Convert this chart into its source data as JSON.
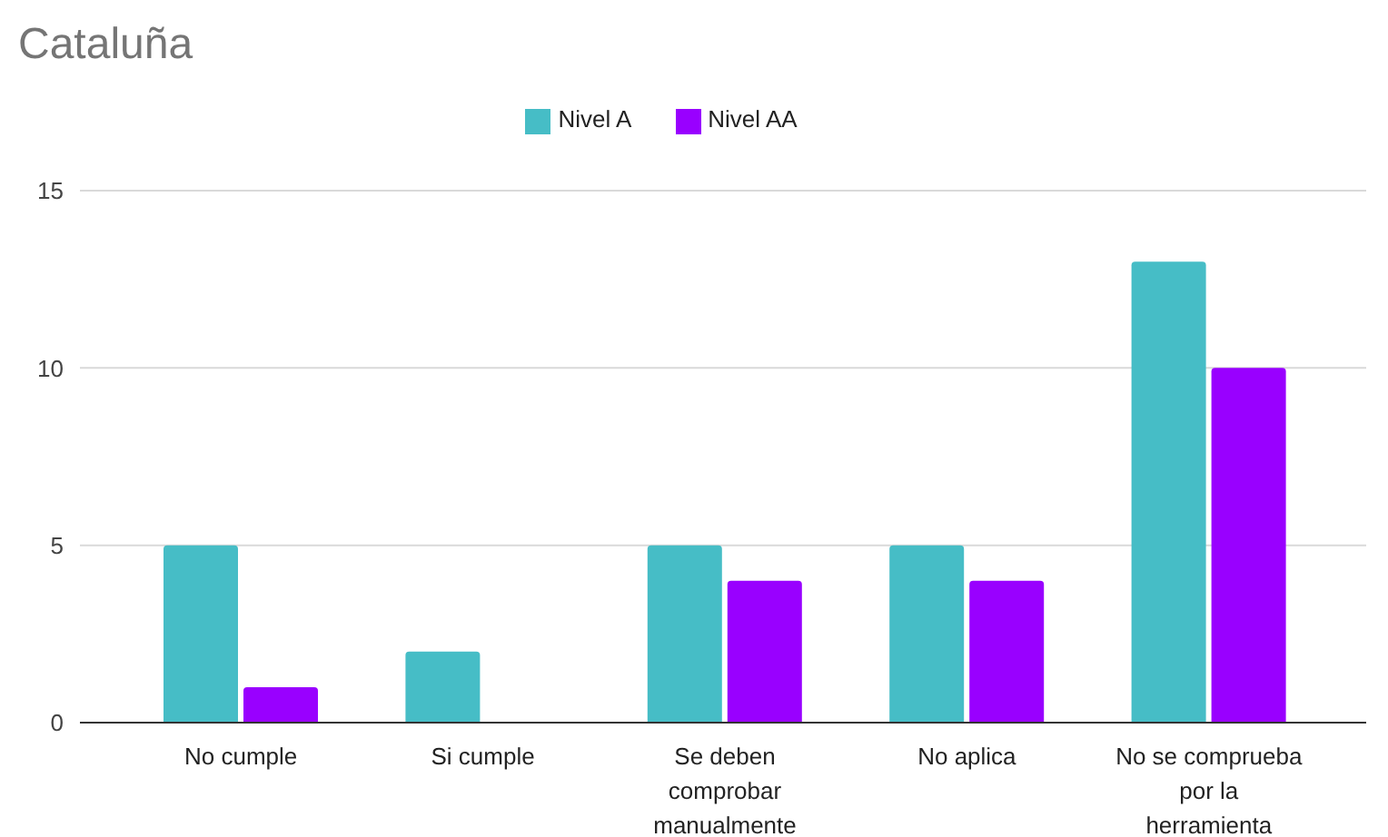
{
  "chart_data": {
    "type": "bar",
    "title": "Cataluña",
    "categories": [
      "No cumple",
      "Si cumple",
      "Se deben comprobar manualmente",
      "No aplica",
      "No se comprueba por la herramienta"
    ],
    "series": [
      {
        "name": "Nivel A",
        "color": "#46bdc6",
        "values": [
          5,
          2,
          5,
          5,
          13
        ]
      },
      {
        "name": "Nivel AA",
        "color": "#9900ff",
        "values": [
          1,
          0,
          4,
          4,
          10
        ]
      }
    ],
    "ylim": [
      0,
      15
    ],
    "yticks": [
      0,
      5,
      10,
      15
    ],
    "grid": "y",
    "legend": "top"
  }
}
